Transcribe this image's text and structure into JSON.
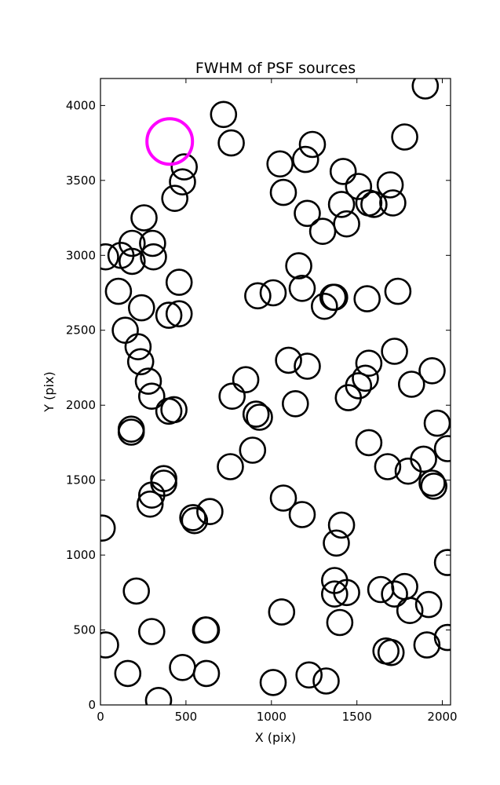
{
  "chart_data": {
    "type": "scatter",
    "title": "FWHM of PSF sources",
    "xlabel": "X (pix)",
    "ylabel": "Y (pix)",
    "xlim": [
      0,
      2048
    ],
    "ylim": [
      0,
      4180
    ],
    "xticks": [
      0,
      500,
      1000,
      1500,
      2000
    ],
    "yticks": [
      0,
      500,
      1000,
      1500,
      2000,
      2500,
      3000,
      3500,
      4000
    ],
    "grid": false,
    "marker": "open-circle",
    "colors": {
      "sources": "#000000",
      "highlight": "#ff00ff",
      "axes": "#000000",
      "background": "#ffffff"
    },
    "series": [
      {
        "values": [
          [
            720,
            3940
          ],
          [
            765,
            3750
          ],
          [
            1900,
            4130
          ],
          [
            1780,
            3790
          ],
          [
            1240,
            3740
          ],
          [
            1050,
            3610
          ],
          [
            1200,
            3640
          ],
          [
            490,
            3590
          ],
          [
            480,
            3490
          ],
          [
            435,
            3380
          ],
          [
            1420,
            3560
          ],
          [
            1510,
            3460
          ],
          [
            1695,
            3470
          ],
          [
            1070,
            3420
          ],
          [
            1210,
            3280
          ],
          [
            1410,
            3340
          ],
          [
            1570,
            3350
          ],
          [
            1600,
            3340
          ],
          [
            1710,
            3350
          ],
          [
            1300,
            3160
          ],
          [
            1440,
            3210
          ],
          [
            255,
            3250
          ],
          [
            30,
            2990
          ],
          [
            120,
            3000
          ],
          [
            185,
            3080
          ],
          [
            185,
            2960
          ],
          [
            305,
            3080
          ],
          [
            310,
            2990
          ],
          [
            460,
            2820
          ],
          [
            1160,
            2930
          ],
          [
            1180,
            2780
          ],
          [
            1740,
            2760
          ],
          [
            105,
            2760
          ],
          [
            1010,
            2750
          ],
          [
            920,
            2730
          ],
          [
            1370,
            2720
          ],
          [
            1360,
            2720
          ],
          [
            1560,
            2710
          ],
          [
            1310,
            2660
          ],
          [
            240,
            2650
          ],
          [
            400,
            2600
          ],
          [
            460,
            2610
          ],
          [
            145,
            2500
          ],
          [
            220,
            2390
          ],
          [
            235,
            2290
          ],
          [
            1100,
            2300
          ],
          [
            1210,
            2260
          ],
          [
            1720,
            2360
          ],
          [
            1570,
            2280
          ],
          [
            1940,
            2230
          ],
          [
            850,
            2170
          ],
          [
            280,
            2160
          ],
          [
            1820,
            2140
          ],
          [
            1550,
            2180
          ],
          [
            1510,
            2130
          ],
          [
            300,
            2060
          ],
          [
            770,
            2060
          ],
          [
            1450,
            2050
          ],
          [
            1140,
            2010
          ],
          [
            400,
            1960
          ],
          [
            430,
            1970
          ],
          [
            910,
            1940
          ],
          [
            930,
            1920
          ],
          [
            180,
            1840
          ],
          [
            180,
            1820
          ],
          [
            1970,
            1880
          ],
          [
            890,
            1700
          ],
          [
            1570,
            1750
          ],
          [
            2030,
            1710
          ],
          [
            1890,
            1640
          ],
          [
            1800,
            1560
          ],
          [
            1680,
            1590
          ],
          [
            760,
            1590
          ],
          [
            370,
            1510
          ],
          [
            370,
            1480
          ],
          [
            1940,
            1480
          ],
          [
            1950,
            1460
          ],
          [
            300,
            1400
          ],
          [
            290,
            1340
          ],
          [
            1070,
            1380
          ],
          [
            1180,
            1270
          ],
          [
            640,
            1290
          ],
          [
            540,
            1250
          ],
          [
            550,
            1230
          ],
          [
            10,
            1180
          ],
          [
            1410,
            1200
          ],
          [
            1380,
            1080
          ],
          [
            2030,
            950
          ],
          [
            1370,
            830
          ],
          [
            1370,
            740
          ],
          [
            1440,
            750
          ],
          [
            1640,
            770
          ],
          [
            1780,
            790
          ],
          [
            1720,
            740
          ],
          [
            210,
            760
          ],
          [
            1060,
            620
          ],
          [
            1810,
            630
          ],
          [
            1920,
            670
          ],
          [
            1400,
            550
          ],
          [
            615,
            500
          ],
          [
            300,
            490
          ],
          [
            620,
            500
          ],
          [
            30,
            400
          ],
          [
            2030,
            450
          ],
          [
            1910,
            400
          ],
          [
            1670,
            360
          ],
          [
            1700,
            350
          ],
          [
            480,
            250
          ],
          [
            160,
            210
          ],
          [
            620,
            210
          ],
          [
            1220,
            200
          ],
          [
            1320,
            160
          ],
          [
            1010,
            150
          ],
          [
            340,
            30
          ]
        ]
      },
      {
        "values": [
          [
            405,
            3760
          ]
        ]
      }
    ]
  }
}
